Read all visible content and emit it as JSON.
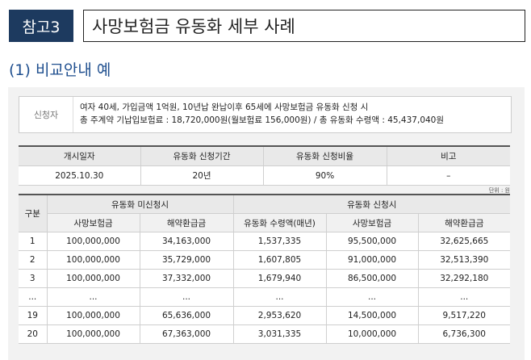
{
  "header": {
    "tag": "참고3",
    "title": "사망보험금 유동화 세부 사례"
  },
  "subheading": "(1) 비교안내 예",
  "applicant": {
    "label": "신청자",
    "line1": "여자 40세, 가입금액 1억원, 10년납 완납이후 65세에 사망보험금 유동화 신청 시",
    "line2": "총 주계약 기납입보험료 : 18,720,000원(월보험료 156,000원) / 총 유동화 수령액 : 45,437,040원"
  },
  "summary": {
    "headers": [
      "개시일자",
      "유동화 신청기간",
      "유동화 신청비율",
      "비고"
    ],
    "row": [
      "2025.10.30",
      "20년",
      "90%",
      "–"
    ]
  },
  "unit": "단위 : 원",
  "detail": {
    "col_gubun": "구분",
    "group1": "유동화 미신청시",
    "group2": "유동화 신청시",
    "sub_headers": [
      "사망보험금",
      "해약환급금",
      "유동화 수령액(매년)",
      "사망보험금",
      "해약환급금"
    ],
    "rows": [
      [
        "1",
        "100,000,000",
        "34,163,000",
        "1,537,335",
        "95,500,000",
        "32,625,665"
      ],
      [
        "2",
        "100,000,000",
        "35,729,000",
        "1,607,805",
        "91,000,000",
        "32,513,390"
      ],
      [
        "3",
        "100,000,000",
        "37,332,000",
        "1,679,940",
        "86,500,000",
        "32,292,180"
      ],
      [
        "...",
        "...",
        "...",
        "...",
        "...",
        "..."
      ],
      [
        "19",
        "100,000,000",
        "65,636,000",
        "2,953,620",
        "14,500,000",
        "9,517,220"
      ],
      [
        "20",
        "100,000,000",
        "67,363,000",
        "3,031,335",
        "10,000,000",
        "6,736,300"
      ]
    ]
  }
}
